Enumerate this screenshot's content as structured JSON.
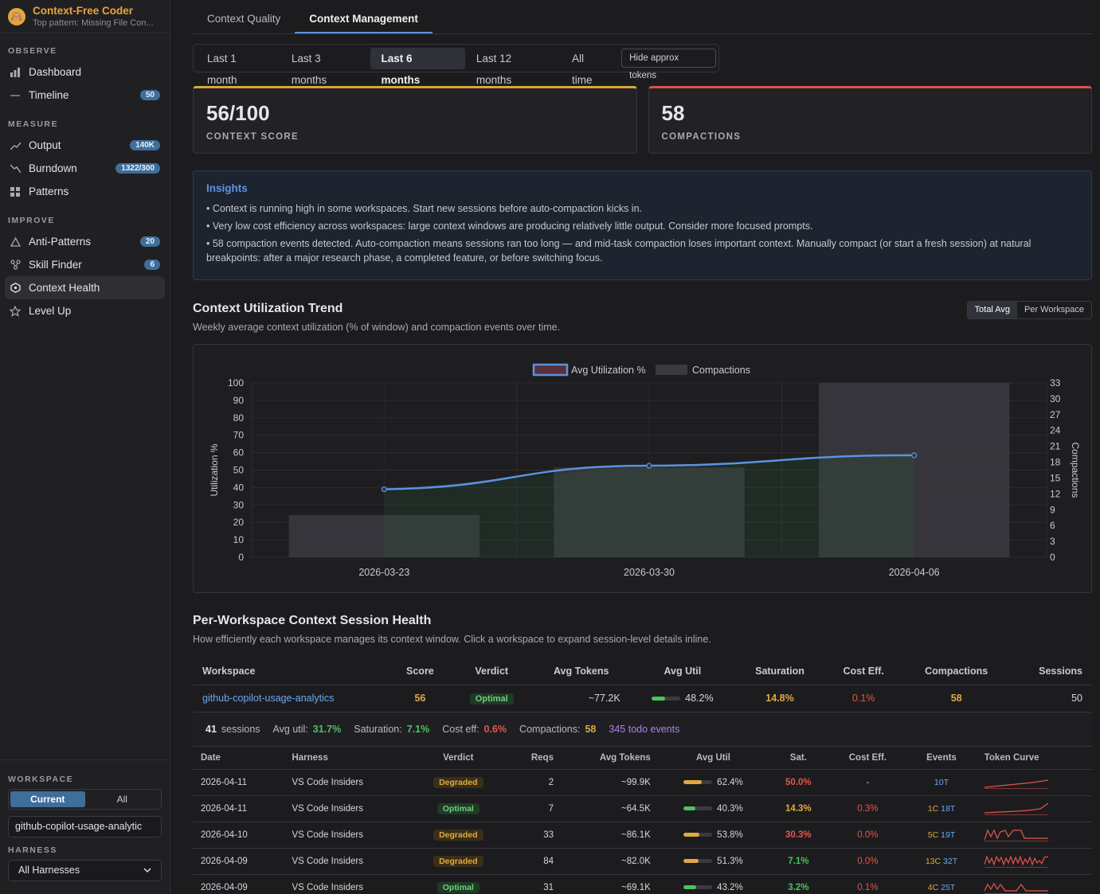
{
  "brand": {
    "title": "Context-Free Coder",
    "subtitle": "Top pattern: Missing File Con..."
  },
  "sidebar": {
    "observe": "OBSERVE",
    "measure": "MEASURE",
    "improve": "IMPROVE",
    "items": [
      {
        "label": "Dashboard",
        "badge": ""
      },
      {
        "label": "Timeline",
        "badge": "50"
      },
      {
        "label": "Output",
        "badge": "140K"
      },
      {
        "label": "Burndown",
        "badge": "1322/300"
      },
      {
        "label": "Patterns",
        "badge": ""
      },
      {
        "label": "Anti-Patterns",
        "badge": "20"
      },
      {
        "label": "Skill Finder",
        "badge": "6"
      },
      {
        "label": "Context Health",
        "badge": ""
      },
      {
        "label": "Level Up",
        "badge": ""
      }
    ],
    "workspace_label": "WORKSPACE",
    "ws_current": "Current",
    "ws_all": "All",
    "ws_value": "github-copilot-usage-analytic",
    "harness_label": "HARNESS",
    "harness_value": "All Harnesses"
  },
  "tabs": [
    "Context Quality",
    "Context Management"
  ],
  "ranges": [
    "Last 1 month",
    "Last 3 months",
    "Last 6 months",
    "Last 12 months",
    "All time"
  ],
  "hide_tokens": "Hide approx tokens",
  "stats": [
    {
      "value": "56/100",
      "label": "CONTEXT SCORE"
    },
    {
      "value": "58",
      "label": "COMPACTIONS"
    }
  ],
  "insights": {
    "title": "Insights",
    "lines": [
      "• Context is running high in some workspaces. Start new sessions before auto-compaction kicks in.",
      "• Very low cost efficiency across workspaces: large context windows are producing relatively little output. Consider more focused prompts.",
      "• 58 compaction events detected. Auto-compaction means sessions ran too long — and mid-task compaction loses important context. Manually compact (or start a fresh session) at natural breakpoints: after a major research phase, a completed feature, or before switching focus."
    ]
  },
  "trend": {
    "title": "Context Utilization Trend",
    "subtitle": "Weekly average context utilization (% of window) and compaction events over time.",
    "toggle": [
      "Total Avg",
      "Per Workspace"
    ]
  },
  "chart_data": {
    "type": "bar",
    "categories": [
      "2026-03-23",
      "2026-03-30",
      "2026-04-06"
    ],
    "series": [
      {
        "name": "Compactions",
        "type": "bar",
        "axis": "right",
        "values": [
          8,
          17,
          33
        ]
      },
      {
        "name": "Avg Utilization %",
        "type": "line",
        "axis": "left",
        "values": [
          39,
          52.5,
          58.5
        ]
      }
    ],
    "ylabel": "Utilization %",
    "y2label": "Compactions",
    "ylim": [
      0,
      100
    ],
    "y2lim": [
      0,
      33
    ],
    "yticks": [
      "0",
      "10",
      "20",
      "30",
      "40",
      "50",
      "60",
      "70",
      "80",
      "90",
      "100"
    ],
    "y2ticks": [
      "0",
      "3",
      "6",
      "9",
      "12",
      "15",
      "18",
      "21",
      "24",
      "27",
      "30",
      "33"
    ],
    "legend": "top-center",
    "colors": {
      "line": "#5b93e0",
      "bar": "#3a3a3f"
    }
  },
  "per_ws": {
    "title": "Per-Workspace Context Session Health",
    "subtitle": "How efficiently each workspace manages its context window. Click a workspace to expand session-level details inline.",
    "headers": [
      "Workspace",
      "Score",
      "Verdict",
      "Avg Tokens",
      "Avg Util",
      "Saturation",
      "Cost Eff.",
      "Compactions",
      "Sessions"
    ],
    "row": {
      "workspace": "github-copilot-usage-analytics",
      "score": "56",
      "verdict": "Optimal",
      "avg_tokens": "~77.2K",
      "avg_util": "48.2%",
      "util_frac": 0.482,
      "saturation": "14.8%",
      "cost_eff": "0.1%",
      "compactions": "58",
      "sessions": "50"
    }
  },
  "summary": {
    "sessions_n": "41",
    "sessions_lbl": "sessions",
    "avg_util_lbl": "Avg util:",
    "avg_util": "31.7%",
    "sat_lbl": "Saturation:",
    "sat": "7.1%",
    "cost_lbl": "Cost eff:",
    "cost": "0.6%",
    "comp_lbl": "Compactions:",
    "comp": "58",
    "todo": "345 todo events"
  },
  "sessions": {
    "headers": [
      "Date",
      "Harness",
      "Verdict",
      "Reqs",
      "Avg Tokens",
      "Avg Util",
      "Sat.",
      "Cost Eff.",
      "Events",
      "Token Curve"
    ],
    "rows": [
      {
        "date": "2026-04-11",
        "harness": "VS Code Insiders",
        "verdict": "Degraded",
        "reqs": "2",
        "tokens": "~99.9K",
        "util": "62.4%",
        "util_frac": 0.624,
        "sat": "50.0%",
        "cost": "-",
        "ev_c": "",
        "ev_t": "10T"
      },
      {
        "date": "2026-04-11",
        "harness": "VS Code Insiders",
        "verdict": "Optimal",
        "reqs": "7",
        "tokens": "~64.5K",
        "util": "40.3%",
        "util_frac": 0.403,
        "sat": "14.3%",
        "cost": "0.3%",
        "ev_c": "1C",
        "ev_t": "18T"
      },
      {
        "date": "2026-04-10",
        "harness": "VS Code Insiders",
        "verdict": "Degraded",
        "reqs": "33",
        "tokens": "~86.1K",
        "util": "53.8%",
        "util_frac": 0.538,
        "sat": "30.3%",
        "cost": "0.0%",
        "ev_c": "5C",
        "ev_t": "19T"
      },
      {
        "date": "2026-04-09",
        "harness": "VS Code Insiders",
        "verdict": "Degraded",
        "reqs": "84",
        "tokens": "~82.0K",
        "util": "51.3%",
        "util_frac": 0.513,
        "sat": "7.1%",
        "cost": "0.0%",
        "ev_c": "13C",
        "ev_t": "32T"
      },
      {
        "date": "2026-04-09",
        "harness": "VS Code Insiders",
        "verdict": "Optimal",
        "reqs": "31",
        "tokens": "~69.1K",
        "util": "43.2%",
        "util_frac": 0.432,
        "sat": "3.2%",
        "cost": "0.1%",
        "ev_c": "4C",
        "ev_t": "25T"
      }
    ]
  }
}
